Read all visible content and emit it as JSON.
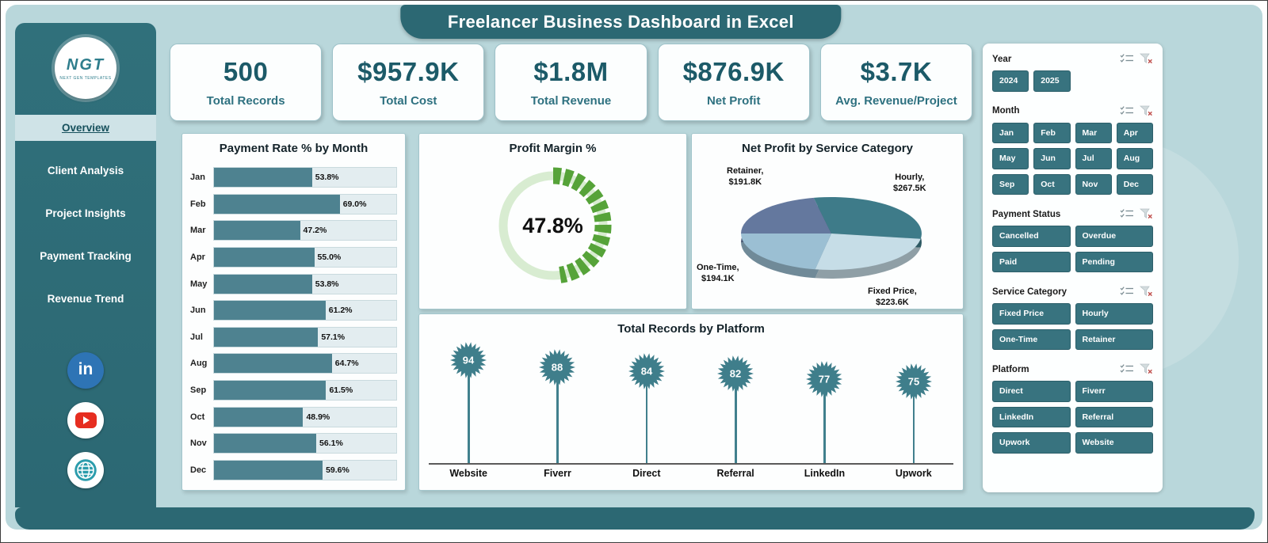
{
  "title": "Freelancer Business Dashboard in Excel",
  "logo": {
    "text": "NGT",
    "subtext": "NEXT GEN TEMPLATES"
  },
  "sidebar": {
    "items": [
      {
        "label": "Overview",
        "active": true
      },
      {
        "label": "Client Analysis",
        "active": false
      },
      {
        "label": "Project Insights",
        "active": false
      },
      {
        "label": "Payment Tracking",
        "active": false
      },
      {
        "label": "Revenue Trend",
        "active": false
      }
    ],
    "social": [
      {
        "name": "linkedin-icon",
        "glyph": "in"
      },
      {
        "name": "youtube-icon",
        "glyph": ""
      },
      {
        "name": "globe-icon",
        "glyph": ""
      }
    ]
  },
  "kpis": [
    {
      "value": "500",
      "label": "Total Records"
    },
    {
      "value": "$957.9K",
      "label": "Total Cost"
    },
    {
      "value": "$1.8M",
      "label": "Total Revenue"
    },
    {
      "value": "$876.9K",
      "label": "Net Profit"
    },
    {
      "value": "$3.7K",
      "label": "Avg. Revenue/Project"
    }
  ],
  "chart_data": [
    {
      "type": "bar",
      "title": "Payment Rate % by Month",
      "orientation": "horizontal",
      "categories": [
        "Jan",
        "Feb",
        "Mar",
        "Apr",
        "May",
        "Jun",
        "Jul",
        "Aug",
        "Sep",
        "Oct",
        "Nov",
        "Dec"
      ],
      "values": [
        53.8,
        69.0,
        47.2,
        55.0,
        53.8,
        61.2,
        57.1,
        64.7,
        61.5,
        48.9,
        56.1,
        59.6
      ],
      "value_suffix": "%",
      "xlim": [
        0,
        100
      ],
      "bar_color": "#4e8290",
      "track_color": "#e3edf0"
    },
    {
      "type": "donut",
      "title": "Profit Margin %",
      "value": 47.8,
      "label": "47.8%",
      "arc_color": "#56a339",
      "track_color": "#d8ecd1"
    },
    {
      "type": "pie",
      "title": "Net Profit by Service Category",
      "slices": [
        {
          "label": "Retainer",
          "value": 191.8,
          "value_label": "$191.8K",
          "color": "#64789e"
        },
        {
          "label": "Hourly",
          "value": 267.5,
          "value_label": "$267.5K",
          "color": "#3e7b89"
        },
        {
          "label": "Fixed Price",
          "value": 223.6,
          "value_label": "$223.6K",
          "color": "#c6dde7"
        },
        {
          "label": "One-Time",
          "value": 194.1,
          "value_label": "$194.1K",
          "color": "#9bbfd3"
        }
      ]
    },
    {
      "type": "lollipop",
      "title": "Total Records by Platform",
      "categories": [
        "Website",
        "Fiverr",
        "Direct",
        "Referral",
        "LinkedIn",
        "Upwork"
      ],
      "values": [
        94,
        88,
        84,
        82,
        77,
        75
      ],
      "marker_color": "#3f7e8b"
    }
  ],
  "slicers": [
    {
      "label": "Year",
      "columns": 4,
      "options": [
        "2024",
        "2025"
      ]
    },
    {
      "label": "Month",
      "columns": 4,
      "options": [
        "Jan",
        "Feb",
        "Mar",
        "Apr",
        "May",
        "Jun",
        "Jul",
        "Aug",
        "Sep",
        "Oct",
        "Nov",
        "Dec"
      ]
    },
    {
      "label": "Payment Status",
      "columns": 2,
      "options": [
        "Cancelled",
        "Overdue",
        "Paid",
        "Pending"
      ]
    },
    {
      "label": "Service Category",
      "columns": 2,
      "options": [
        "Fixed Price",
        "Hourly",
        "One-Time",
        "Retainer"
      ]
    },
    {
      "label": "Platform",
      "columns": 2,
      "options": [
        "Direct",
        "Fiverr",
        "LinkedIn",
        "Referral",
        "Upwork",
        "Website"
      ]
    }
  ],
  "colors": {
    "accent_dark": "#2c6873",
    "accent_button": "#38737f",
    "background": "#b9d7db",
    "kpi_value": "#1c5a68",
    "kpi_label": "#2e7180"
  }
}
